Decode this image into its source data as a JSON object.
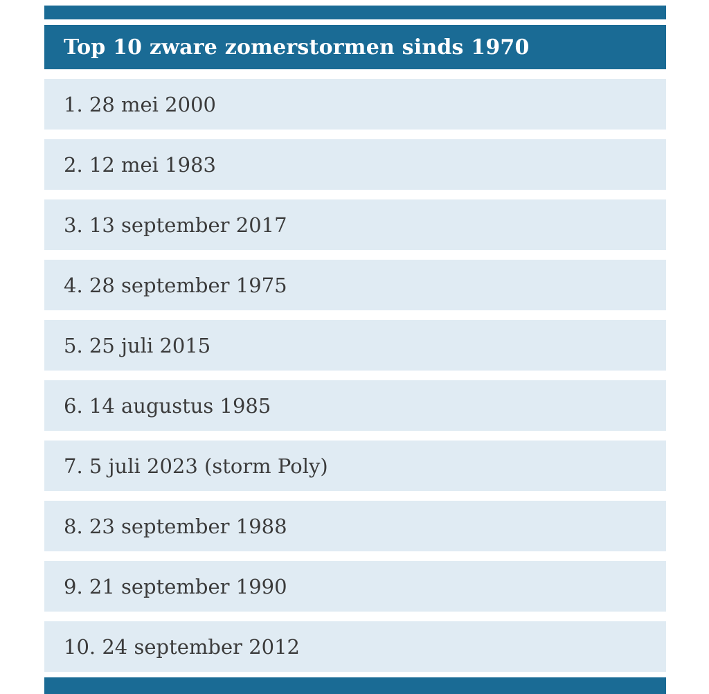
{
  "chart_data": {
    "type": "table",
    "title": "Top 10 zware zomerstormen sinds 1970",
    "rows": [
      "1. 28 mei 2000",
      "2. 12 mei 1983",
      "3. 13 september 2017",
      "4. 28 september 1975",
      "5. 25 juli 2015",
      "6. 14 augustus 1985",
      "7. 5 juli 2023 (storm Poly)",
      "8. 23 september 1988",
      "9. 21 september 1990",
      "10. 24 september 2012"
    ]
  },
  "colors": {
    "header_bg": "#1a6b95",
    "row_bg": "#e0ebf3",
    "header_text": "#ffffff",
    "row_text": "#3b3b3b"
  }
}
